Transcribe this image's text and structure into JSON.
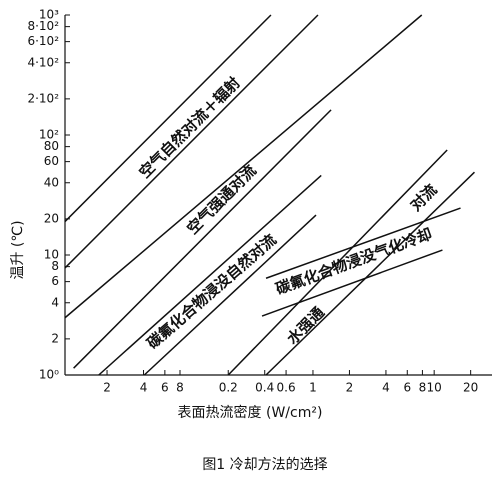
{
  "chart_data": {
    "type": "line",
    "xlabel": "表面热流密度 (W/cm²)",
    "ylabel": "温升 (℃)",
    "caption": "图1  冷却方法的选择",
    "log_x": true,
    "log_y": true,
    "grid": false,
    "color": "#111111",
    "xlim": [
      0.009,
      30
    ],
    "ylim": [
      1,
      1000
    ],
    "xticks": [
      {
        "value": 0.02,
        "label": "2"
      },
      {
        "value": 0.04,
        "label": "4"
      },
      {
        "value": 0.06,
        "label": "6"
      },
      {
        "value": 0.08,
        "label": "8"
      },
      0.2,
      0.4,
      0.6,
      1,
      2,
      4,
      6,
      8,
      10,
      20
    ],
    "yticks": [
      {
        "value": 1,
        "label": "10⁰"
      },
      2,
      4,
      6,
      8,
      10,
      20,
      40,
      60,
      80,
      {
        "value": 100,
        "label": "10²"
      },
      {
        "value": 200,
        "label": "2·10²"
      },
      {
        "value": 400,
        "label": "4·10²"
      },
      {
        "value": 600,
        "label": "6·10²"
      },
      {
        "value": 800,
        "label": "8·10²"
      },
      {
        "value": 1000,
        "label": "10³"
      }
    ],
    "series": [
      {
        "x": [
          0.009,
          0.45
        ],
        "values": [
          19,
          1000
        ]
      },
      {
        "x": [
          0.009,
          1.1
        ],
        "values": [
          7.8,
          1000
        ]
      },
      {
        "x": [
          0.009,
          7.9
        ],
        "values": [
          3.0,
          1000
        ]
      },
      {
        "x": [
          0.0106,
          1.41
        ],
        "values": [
          1.14,
          162
        ]
      },
      {
        "x": [
          0.0171,
          1.17
        ],
        "values": [
          1,
          46
        ]
      },
      {
        "x": [
          0.0406,
          1.06
        ],
        "values": [
          1,
          21.5
        ]
      },
      {
        "x": [
          0.2,
          12.8
        ],
        "values": [
          1,
          75
        ]
      },
      {
        "x": [
          0.41,
          21.5
        ],
        "values": [
          1,
          49
        ]
      },
      {
        "x": [
          0.41,
          16.5
        ],
        "values": [
          6.4,
          24.6
        ]
      },
      {
        "x": [
          0.38,
          11.7
        ],
        "values": [
          3.1,
          11
        ]
      }
    ],
    "annotations": [
      "空气自然对流＋辐射",
      "空气强通对流",
      "碳氟化合物浸没自然对流",
      "碳氟化合物浸没气化冷却",
      "对流",
      "水强通"
    ]
  }
}
